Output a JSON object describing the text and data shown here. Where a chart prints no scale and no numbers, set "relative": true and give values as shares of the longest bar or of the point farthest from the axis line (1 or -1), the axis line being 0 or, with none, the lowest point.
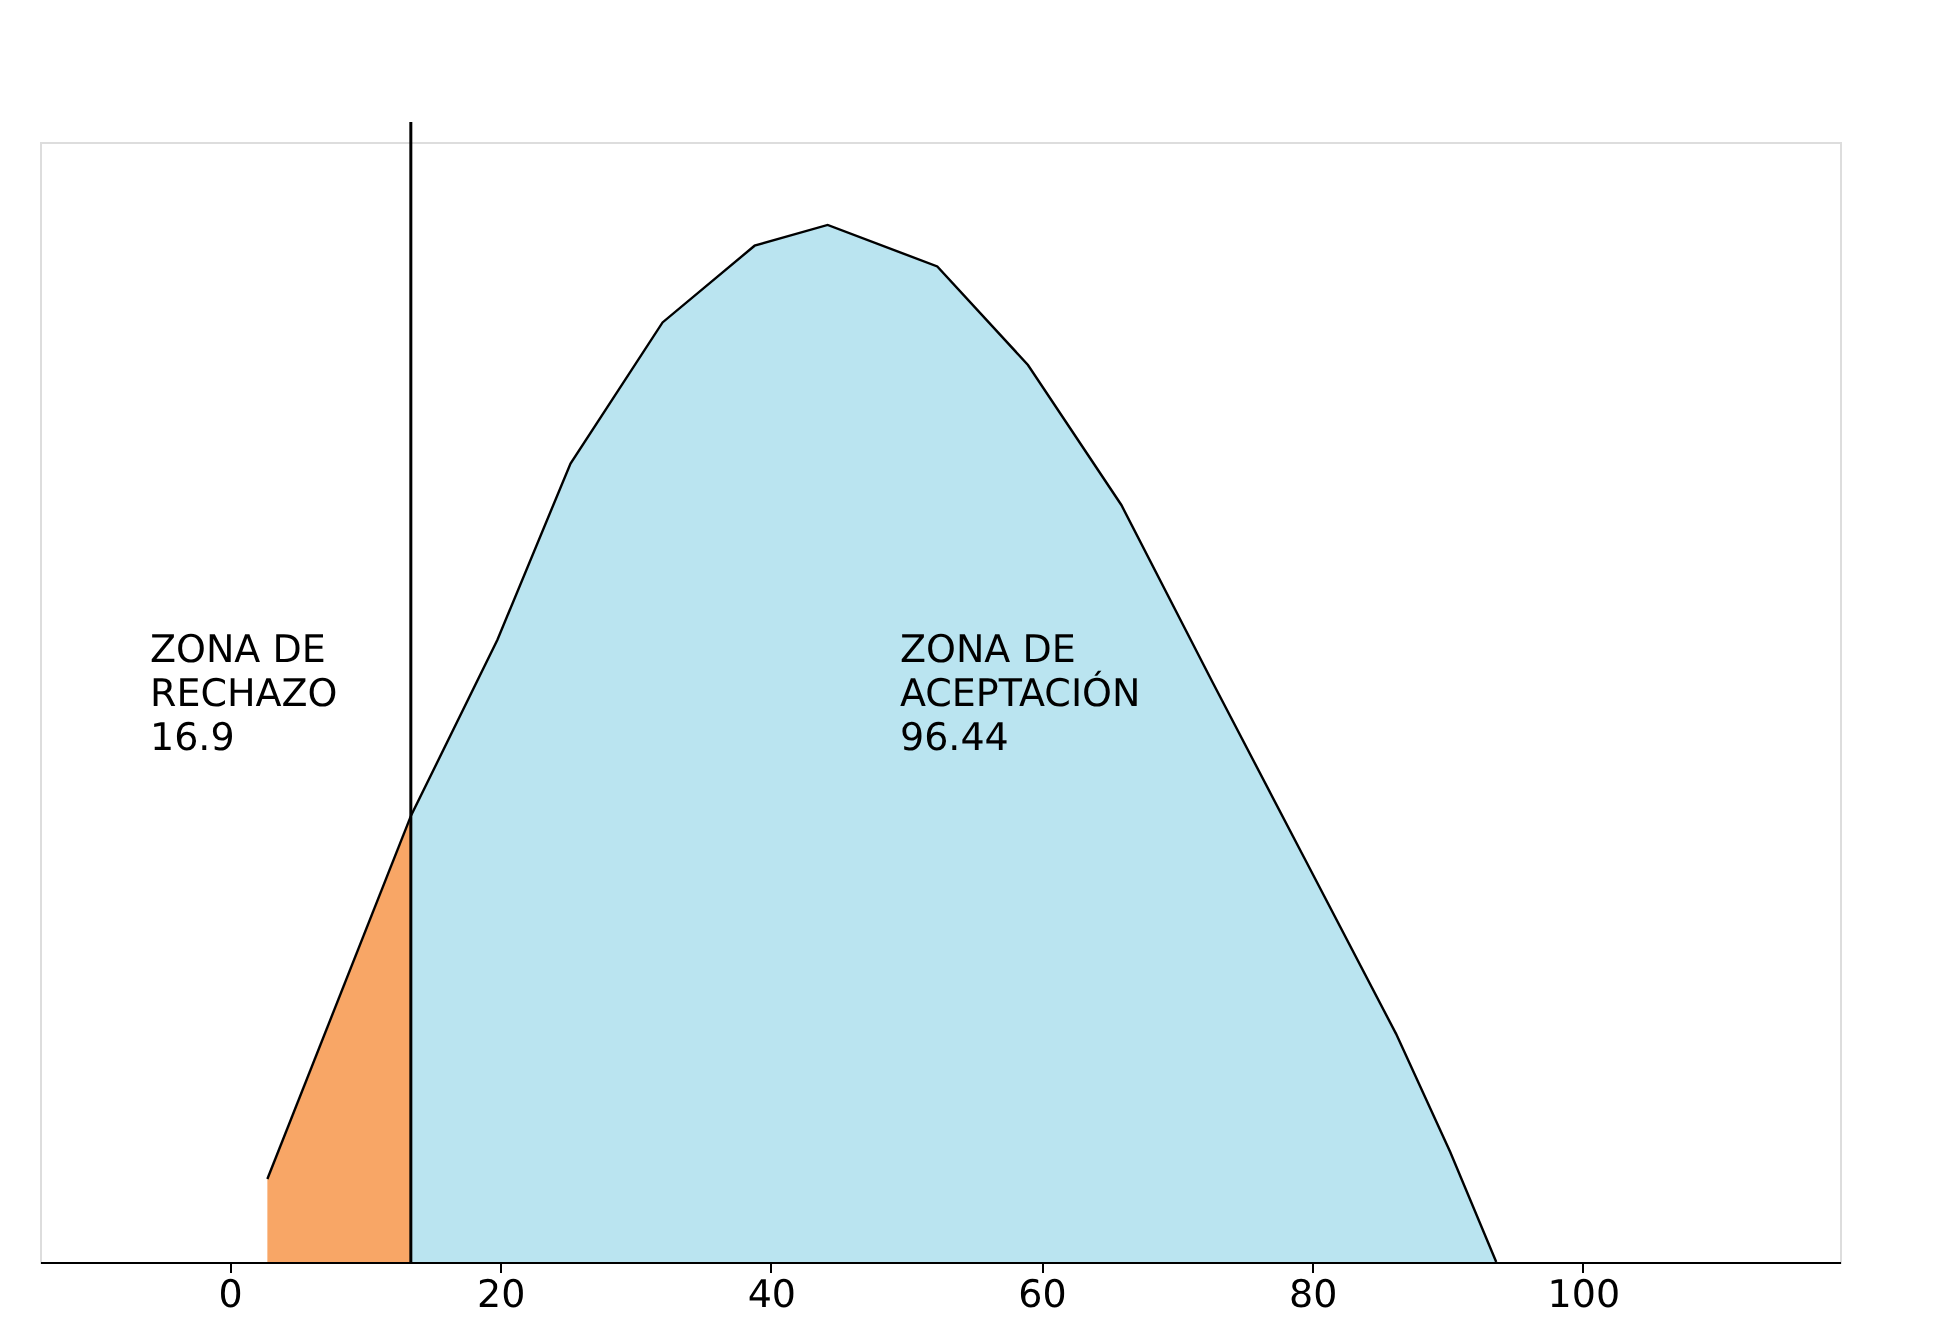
{
  "chart_data": {
    "type": "area",
    "relative": true,
    "xlim": [
      -14,
      119
    ],
    "xticks": [
      0,
      20,
      40,
      60,
      80,
      100
    ],
    "grid": false,
    "series": [
      {
        "color": "#f58025",
        "x": [
          2.8,
          13.4
        ],
        "values": [
          0.08,
          0.43
        ]
      },
      {
        "color": "#9cd8ea",
        "x": [
          13.4,
          19.8,
          25.2,
          32,
          38.8,
          44.2,
          52.3,
          59,
          65.9,
          72.6,
          79.4,
          86.2,
          90.2,
          93.6
        ],
        "values": [
          0.43,
          0.6,
          0.77,
          0.906,
          0.98,
          1,
          0.96,
          0.865,
          0.73,
          0.56,
          0.39,
          0.22,
          0.106,
          0
        ]
      }
    ],
    "ref_lines": [
      {
        "axis": "x",
        "value": 13.4,
        "label": null
      }
    ],
    "annotations": [
      "ZONA  DE\nRECHAZO\n\n16.9",
      "ZONA DE\n\nACEPTACIÓN\n\n      96.44"
    ]
  }
}
